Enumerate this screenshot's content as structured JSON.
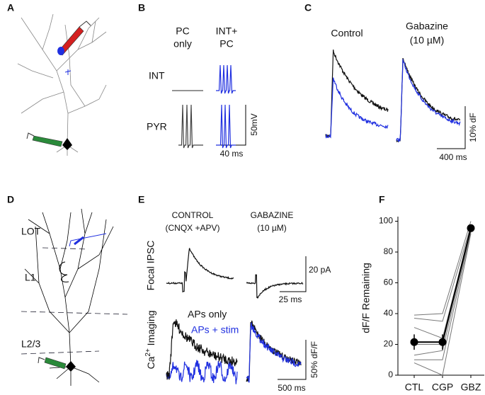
{
  "panels": {
    "a": {
      "label": "A"
    },
    "b": {
      "label": "B",
      "col1": [
        "PC",
        "only"
      ],
      "col2": [
        "INT+",
        "PC"
      ],
      "row1": "INT",
      "row2": "PYR",
      "scale_v": "50mV",
      "scale_h": "40 ms"
    },
    "c": {
      "label": "C",
      "control": "Control",
      "gabazine": [
        "Gabazine",
        "(10 µM)"
      ],
      "scale_v": "10% dF",
      "scale_h": "400 ms"
    },
    "d": {
      "label": "D",
      "layers": [
        "LOT",
        "L1",
        "L2/3"
      ]
    },
    "e": {
      "label": "E",
      "control": [
        "CONTROL",
        "(CNQX +APV)"
      ],
      "gabazine": [
        "GABAZINE",
        "(10 µM)"
      ],
      "row1": "Focal IPSC",
      "row2": {
        "base": "Ca",
        "sup": "2+",
        "rest": " Imaging"
      },
      "legend": [
        "APs only",
        "APs + stim"
      ],
      "ipsc_scale_v": "20 pA",
      "ipsc_scale_h": "25 ms",
      "ca_scale_v": "50% dF/F",
      "ca_scale_h": "500 ms"
    },
    "f": {
      "label": "F",
      "chart": {
        "type": "line",
        "ylabel": "dF/F Remaining",
        "categories": [
          "CTL",
          "CGP",
          "GBZ"
        ],
        "ylim": [
          0,
          103
        ],
        "yticks": [
          0,
          20,
          40,
          60,
          80,
          100
        ],
        "cells": [
          [
            39,
            40,
            100
          ],
          [
            37,
            35,
            97
          ],
          [
            31,
            24,
            96
          ],
          [
            20,
            20,
            95
          ],
          [
            13,
            16,
            94
          ],
          [
            10,
            10,
            93
          ],
          [
            8,
            0,
            92
          ]
        ],
        "means": [
          21.5,
          21.5,
          95.5
        ],
        "errors": [
          5,
          5,
          1
        ]
      }
    }
  }
}
